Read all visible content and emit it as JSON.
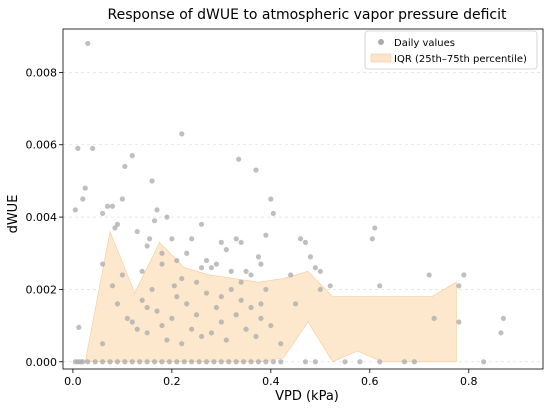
{
  "chart_data": {
    "type": "scatter",
    "title": "Response of dWUE to atmospheric vapor pressure deficit",
    "xlabel": "VPD (kPa)",
    "ylabel": "dWUE",
    "xlim": [
      -0.02,
      0.95
    ],
    "ylim": [
      -0.0002,
      0.0092
    ],
    "x_ticks": [
      0.0,
      0.2,
      0.4,
      0.6,
      0.8
    ],
    "x_tick_labels": [
      "0.0",
      "0.2",
      "0.4",
      "0.6",
      "0.8"
    ],
    "y_ticks": [
      0.0,
      0.002,
      0.004,
      0.006,
      0.008
    ],
    "y_tick_labels": [
      "0.000",
      "0.002",
      "0.004",
      "0.006",
      "0.008"
    ],
    "grid": "horizontal-dashed",
    "legend_position": "top-right",
    "colors": {
      "points": "#aaaaaa",
      "band_fill": "#fde5c9",
      "band_edge": "#f7c99a"
    },
    "series": [
      {
        "name": "Daily values",
        "kind": "points",
        "points": [
          [
            0.005,
            0.0042
          ],
          [
            0.01,
            0.0059
          ],
          [
            0.02,
            0.0045
          ],
          [
            0.025,
            0.0048
          ],
          [
            0.03,
            0.0088
          ],
          [
            0.04,
            0.0059
          ],
          [
            0.012,
            0.00095
          ],
          [
            0.06,
            0.0041
          ],
          [
            0.07,
            0.0043
          ],
          [
            0.08,
            0.0043
          ],
          [
            0.085,
            0.0037
          ],
          [
            0.09,
            0.0038
          ],
          [
            0.1,
            0.0045
          ],
          [
            0.105,
            0.0054
          ],
          [
            0.12,
            0.0057
          ],
          [
            0.13,
            0.0036
          ],
          [
            0.14,
            0.0025
          ],
          [
            0.15,
            0.0032
          ],
          [
            0.155,
            0.0034
          ],
          [
            0.16,
            0.005
          ],
          [
            0.165,
            0.0039
          ],
          [
            0.17,
            0.0042
          ],
          [
            0.18,
            0.003
          ],
          [
            0.19,
            0.004
          ],
          [
            0.2,
            0.0034
          ],
          [
            0.205,
            0.0021
          ],
          [
            0.21,
            0.0028
          ],
          [
            0.22,
            0.0063
          ],
          [
            0.23,
            0.003
          ],
          [
            0.24,
            0.0034
          ],
          [
            0.25,
            0.0022
          ],
          [
            0.26,
            0.0038
          ],
          [
            0.27,
            0.0028
          ],
          [
            0.28,
            0.0026
          ],
          [
            0.29,
            0.0027
          ],
          [
            0.3,
            0.0033
          ],
          [
            0.31,
            0.0031
          ],
          [
            0.32,
            0.0025
          ],
          [
            0.33,
            0.0034
          ],
          [
            0.335,
            0.0056
          ],
          [
            0.34,
            0.0033
          ],
          [
            0.35,
            0.0025
          ],
          [
            0.36,
            0.0024
          ],
          [
            0.37,
            0.0053
          ],
          [
            0.375,
            0.0029
          ],
          [
            0.38,
            0.0027
          ],
          [
            0.39,
            0.0035
          ],
          [
            0.4,
            0.0045
          ],
          [
            0.405,
            0.0041
          ],
          [
            0.44,
            0.0024
          ],
          [
            0.46,
            0.0034
          ],
          [
            0.47,
            0.0033
          ],
          [
            0.48,
            0.0029
          ],
          [
            0.49,
            0.0026
          ],
          [
            0.5,
            0.0025
          ],
          [
            0.52,
            0.0021
          ],
          [
            0.61,
            0.0037
          ],
          [
            0.605,
            0.0034
          ],
          [
            0.62,
            0.0021
          ],
          [
            0.72,
            0.0024
          ],
          [
            0.73,
            0.0012
          ],
          [
            0.78,
            0.0021
          ],
          [
            0.79,
            0.0024
          ],
          [
            0.78,
            0.0011
          ],
          [
            0.87,
            0.0012
          ],
          [
            0.865,
            0.0008
          ],
          [
            0.06,
            0.0027
          ],
          [
            0.09,
            0.0016
          ],
          [
            0.11,
            0.0012
          ],
          [
            0.12,
            0.0011
          ],
          [
            0.13,
            0.0009
          ],
          [
            0.14,
            0.0017
          ],
          [
            0.15,
            0.0008
          ],
          [
            0.16,
            0.002
          ],
          [
            0.17,
            0.0014
          ],
          [
            0.18,
            0.001
          ],
          [
            0.19,
            0.0006
          ],
          [
            0.2,
            0.0012
          ],
          [
            0.21,
            0.0018
          ],
          [
            0.22,
            0.0005
          ],
          [
            0.23,
            0.0016
          ],
          [
            0.24,
            0.0009
          ],
          [
            0.25,
            0.0013
          ],
          [
            0.26,
            0.0007
          ],
          [
            0.27,
            0.0019
          ],
          [
            0.28,
            0.0008
          ],
          [
            0.29,
            0.0015
          ],
          [
            0.3,
            0.0011
          ],
          [
            0.31,
            0.0006
          ],
          [
            0.32,
            0.002
          ],
          [
            0.33,
            0.0013
          ],
          [
            0.34,
            0.0017
          ],
          [
            0.35,
            0.0009
          ],
          [
            0.36,
            0.0015
          ],
          [
            0.37,
            0.0007
          ],
          [
            0.38,
            0.0012
          ],
          [
            0.39,
            0.002
          ],
          [
            0.4,
            0.001
          ],
          [
            0.42,
            0.0005
          ],
          [
            0.45,
            0.0016
          ],
          [
            0.5,
            0.002
          ],
          [
            0.06,
            0.0005
          ],
          [
            0.08,
            0.0021
          ],
          [
            0.1,
            0.0024
          ],
          [
            0.15,
            0.0015
          ],
          [
            0.18,
            0.0027
          ],
          [
            0.22,
            0.0023
          ],
          [
            0.26,
            0.0026
          ],
          [
            0.3,
            0.0018
          ],
          [
            0.34,
            0.0022
          ],
          [
            0.38,
            0.0016
          ],
          [
            0.02,
            0.0
          ],
          [
            0.03,
            0.0
          ],
          [
            0.045,
            0.0
          ],
          [
            0.06,
            0.0
          ],
          [
            0.075,
            0.0
          ],
          [
            0.09,
            0.0
          ],
          [
            0.105,
            0.0
          ],
          [
            0.12,
            0.0
          ],
          [
            0.135,
            0.0
          ],
          [
            0.15,
            0.0
          ],
          [
            0.165,
            0.0
          ],
          [
            0.18,
            0.0
          ],
          [
            0.195,
            0.0
          ],
          [
            0.21,
            0.0
          ],
          [
            0.225,
            0.0
          ],
          [
            0.24,
            0.0
          ],
          [
            0.255,
            0.0
          ],
          [
            0.27,
            0.0
          ],
          [
            0.285,
            0.0
          ],
          [
            0.3,
            0.0
          ],
          [
            0.315,
            0.0
          ],
          [
            0.33,
            0.0
          ],
          [
            0.345,
            0.0
          ],
          [
            0.36,
            0.0
          ],
          [
            0.375,
            0.0
          ],
          [
            0.39,
            0.0
          ],
          [
            0.405,
            0.0
          ],
          [
            0.42,
            0.0
          ],
          [
            0.47,
            0.0
          ],
          [
            0.49,
            0.0
          ],
          [
            0.55,
            0.0
          ],
          [
            0.58,
            0.0
          ],
          [
            0.62,
            0.0
          ],
          [
            0.67,
            0.0
          ],
          [
            0.69,
            0.0
          ],
          [
            0.83,
            0.0
          ],
          [
            0.01,
            0.0
          ],
          [
            0.015,
            0.0
          ],
          [
            0.005,
            0.0
          ]
        ]
      },
      {
        "name": "IQR (25th–75th percentile)",
        "kind": "band",
        "x": [
          0.025,
          0.075,
          0.125,
          0.175,
          0.225,
          0.275,
          0.325,
          0.375,
          0.425,
          0.475,
          0.525,
          0.575,
          0.625,
          0.675,
          0.725,
          0.775
        ],
        "lower": [
          0.0,
          0.0,
          0.0,
          0.0,
          0.0,
          0.0,
          0.0,
          0.0,
          0.0001,
          0.0011,
          0.0,
          0.0003,
          0.0,
          0.0,
          0.0,
          0.0
        ],
        "upper": [
          0.0,
          0.0036,
          0.0019,
          0.0033,
          0.0026,
          0.0024,
          0.0023,
          0.0022,
          0.0023,
          0.0025,
          0.0018,
          0.0018,
          0.0018,
          0.0018,
          0.0018,
          0.0022
        ]
      }
    ]
  }
}
